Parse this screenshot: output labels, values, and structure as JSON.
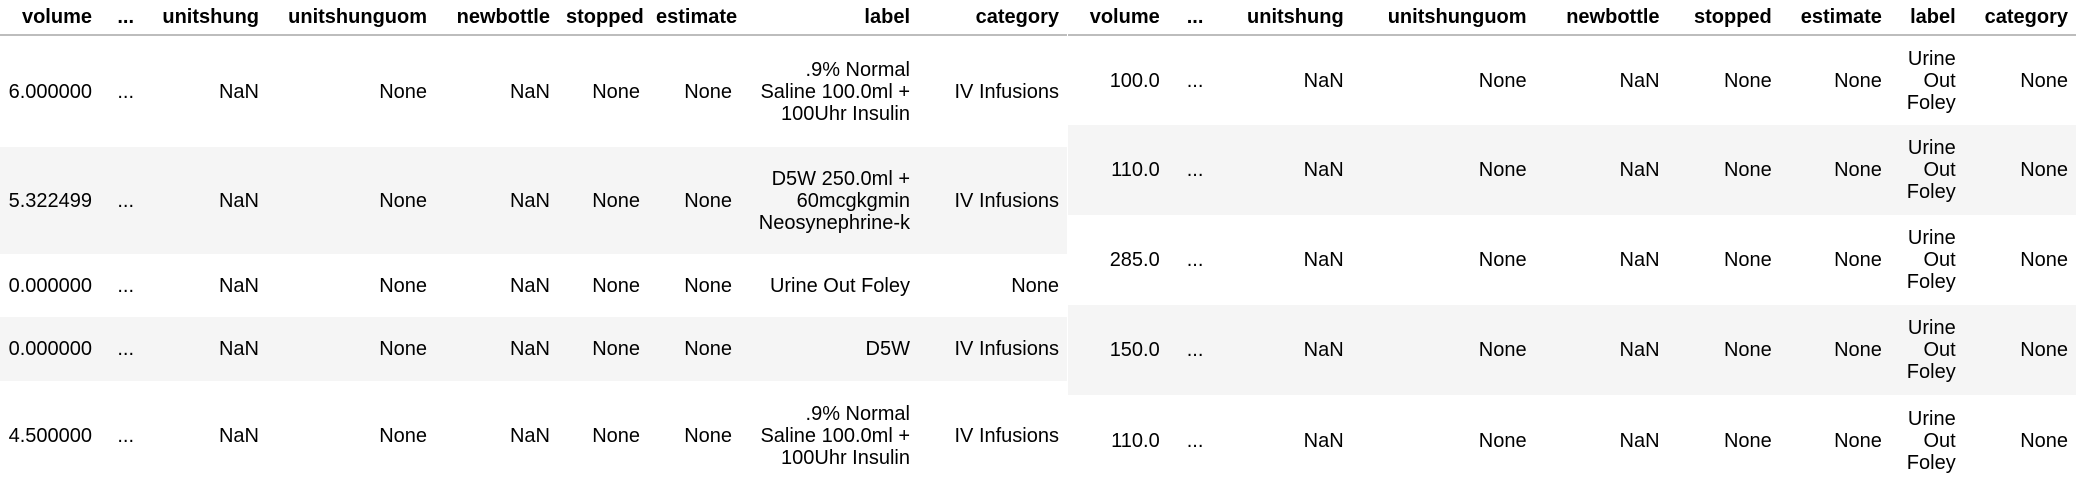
{
  "left_table": {
    "columns": [
      "volume",
      "...",
      "unitshung",
      "unitshunguom",
      "newbottle",
      "stopped",
      "estimate",
      "label",
      "category"
    ],
    "rows": [
      [
        "6.000000",
        "...",
        "NaN",
        "None",
        "NaN",
        "None",
        "None",
        ".9% Normal Saline 100.0ml + 100Uhr Insulin",
        "IV Infusions"
      ],
      [
        "5.322499",
        "...",
        "NaN",
        "None",
        "NaN",
        "None",
        "None",
        "D5W 250.0ml + 60mcgkgmin Neosynephrine-k",
        "IV Infusions"
      ],
      [
        "0.000000",
        "...",
        "NaN",
        "None",
        "NaN",
        "None",
        "None",
        "Urine Out Foley",
        "None"
      ],
      [
        "0.000000",
        "...",
        "NaN",
        "None",
        "NaN",
        "None",
        "None",
        "D5W",
        "IV Infusions"
      ],
      [
        "4.500000",
        "...",
        "NaN",
        "None",
        "NaN",
        "None",
        "None",
        ".9% Normal Saline 100.0ml + 100Uhr Insulin",
        "IV Infusions"
      ]
    ]
  },
  "right_table": {
    "columns": [
      "volume",
      "...",
      "unitshung",
      "unitshunguom",
      "newbottle",
      "stopped",
      "estimate",
      "label",
      "category"
    ],
    "rows": [
      [
        "100.0",
        "...",
        "NaN",
        "None",
        "NaN",
        "None",
        "None",
        "Urine Out Foley",
        "None"
      ],
      [
        "110.0",
        "...",
        "NaN",
        "None",
        "NaN",
        "None",
        "None",
        "Urine Out Foley",
        "None"
      ],
      [
        "285.0",
        "...",
        "NaN",
        "None",
        "NaN",
        "None",
        "None",
        "Urine Out Foley",
        "None"
      ],
      [
        "150.0",
        "...",
        "NaN",
        "None",
        "NaN",
        "None",
        "None",
        "Urine Out Foley",
        "None"
      ],
      [
        "110.0",
        "...",
        "NaN",
        "None",
        "NaN",
        "None",
        "None",
        "Urine Out Foley",
        "None"
      ]
    ]
  }
}
